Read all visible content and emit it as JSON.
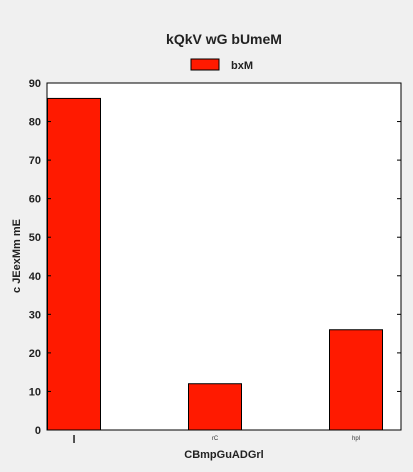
{
  "chart_data": {
    "type": "bar",
    "title": "kQkV wG bUmeM",
    "xlabel": "CBmpGuADGrl",
    "ylabel": "c JEexMm mE",
    "categories": [
      "l",
      "rC",
      "hpl"
    ],
    "series": [
      {
        "name": "bxM",
        "values": [
          86,
          12,
          26
        ],
        "color": "#ff1a00"
      }
    ],
    "ylim": [
      0,
      90
    ],
    "yticks": [
      0,
      10,
      20,
      30,
      40,
      50,
      60,
      70,
      80,
      90
    ],
    "legend": "top-center",
    "grid": false
  }
}
